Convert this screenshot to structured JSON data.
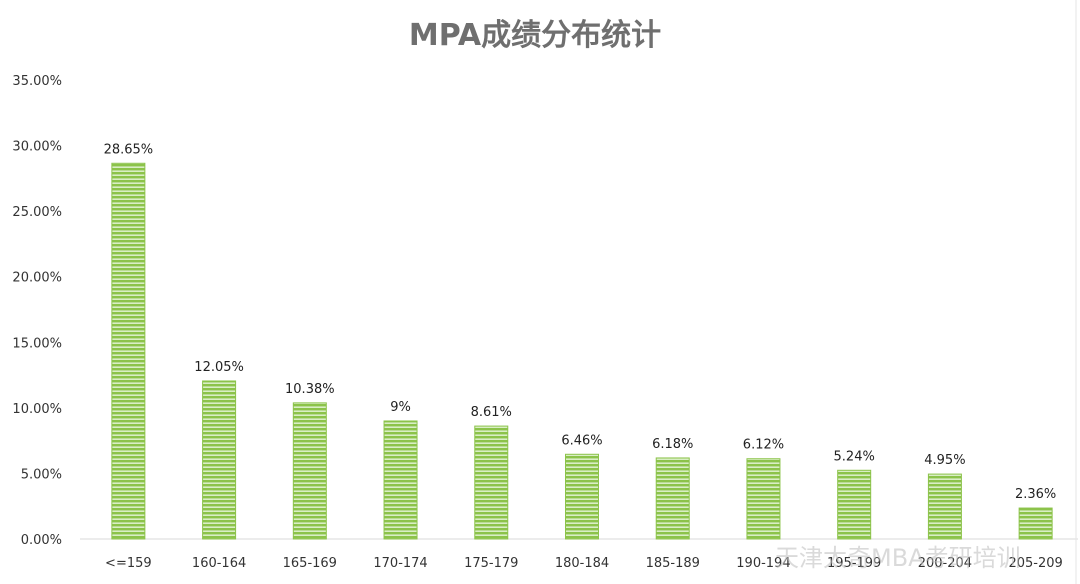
{
  "chart_data": {
    "type": "bar",
    "title": "MPA成绩分布统计",
    "categories": [
      "<=159",
      "160-164",
      "165-169",
      "170-174",
      "175-179",
      "180-184",
      "185-189",
      "190-194",
      "195-199",
      "200-204",
      "205-209"
    ],
    "values": [
      28.65,
      12.05,
      10.38,
      9,
      8.61,
      6.46,
      6.18,
      6.12,
      5.24,
      4.95,
      2.36
    ],
    "data_labels": [
      "28.65%",
      "12.05%",
      "10.38%",
      "9%",
      "8.61%",
      "6.46%",
      "6.18%",
      "6.12%",
      "5.24%",
      "4.95%",
      "2.36%"
    ],
    "yticks": [
      "0.00%",
      "5.00%",
      "10.00%",
      "15.00%",
      "20.00%",
      "25.00%",
      "30.00%",
      "35.00%"
    ],
    "ylim": [
      0,
      35
    ],
    "xlabel": "",
    "ylabel": "",
    "grid": false,
    "legend": "none",
    "bar_color": "#8cc34a",
    "bar_stripe_color": "#d9eec5"
  },
  "watermark": {
    "text": "天津太奇MBA考研培训"
  }
}
